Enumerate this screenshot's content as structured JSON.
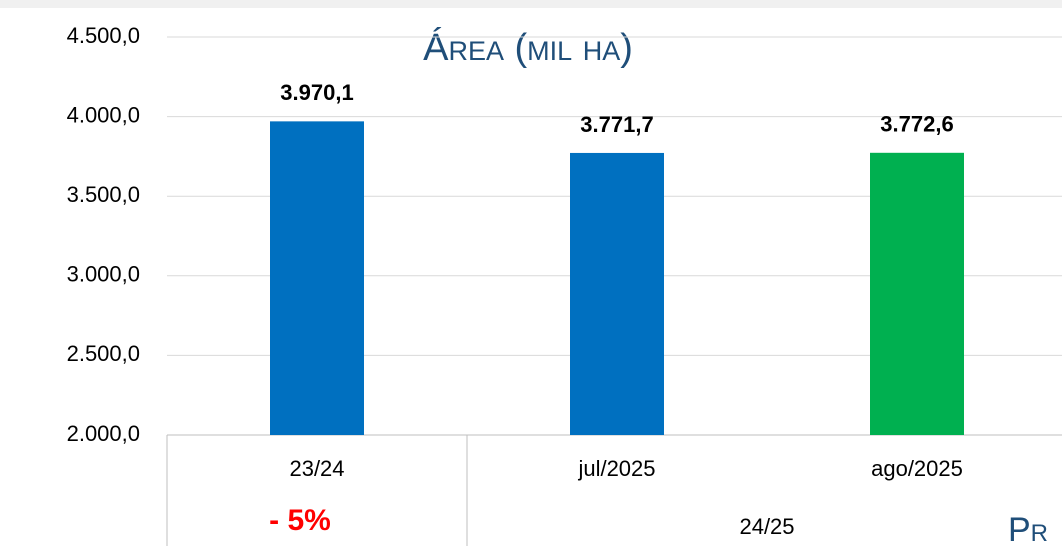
{
  "chart_data": {
    "type": "bar",
    "title": "Área (mil ha)",
    "categories": [
      "23/24",
      "jul/2025",
      "ago/2025"
    ],
    "groups": [
      {
        "label": "23/24",
        "span": 1
      },
      {
        "label": "24/25",
        "span": 2
      }
    ],
    "values": [
      3970.1,
      3771.7,
      3772.6
    ],
    "value_labels": [
      "3.970,1",
      "3.771,7",
      "3.772,6"
    ],
    "colors": [
      "#0070c0",
      "#0070c0",
      "#00b050"
    ],
    "ylim": [
      2000,
      4500
    ],
    "yticks": [
      {
        "value": 2000,
        "label": "2.000,0"
      },
      {
        "value": 2500,
        "label": "2.500,0"
      },
      {
        "value": 3000,
        "label": "3.000,0"
      },
      {
        "value": 3500,
        "label": "3.500,0"
      },
      {
        "value": 4000,
        "label": "4.000,0"
      },
      {
        "value": 4500,
        "label": "4.500,0"
      }
    ],
    "grid": true,
    "annotations": [
      "- 5%",
      "Pr"
    ]
  }
}
